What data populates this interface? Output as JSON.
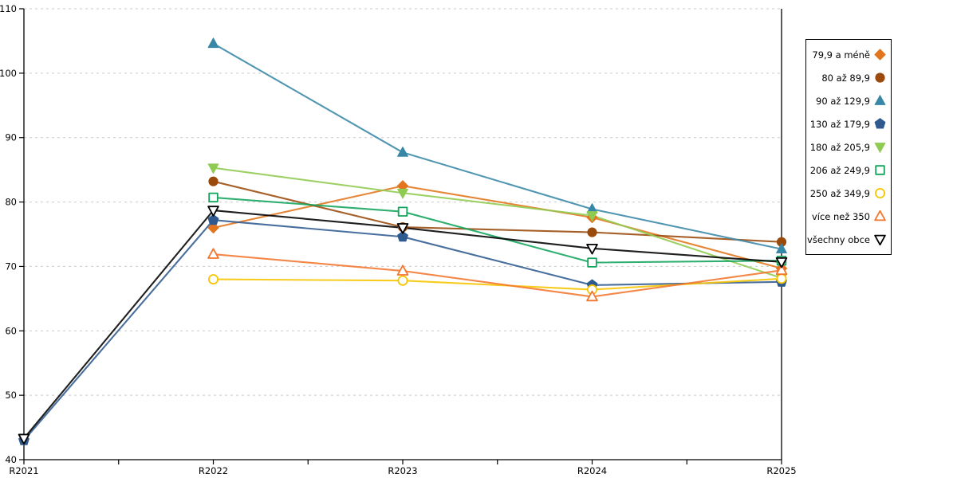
{
  "chart_data": {
    "type": "line",
    "title": "",
    "xlabel": "",
    "ylabel": "",
    "x_labels": [
      "R2021",
      "R2022",
      "R2023",
      "R2024",
      "R2025"
    ],
    "ylim": [
      40,
      110
    ],
    "yticks": [
      40,
      50,
      60,
      70,
      80,
      90,
      100,
      110
    ],
    "grid": "horizontal-dashed",
    "grid_color": "#c9c9c9",
    "axis_color": "#000000",
    "legend_position": "right-outside",
    "series": [
      {
        "name": "79,9 a méně",
        "color": "#E2751D",
        "marker": "diamond",
        "filled": true,
        "values": [
          null,
          76.0,
          82.5,
          77.6,
          69.7
        ]
      },
      {
        "name": "80 až 89,9",
        "color": "#9A4A0C",
        "marker": "circle",
        "filled": true,
        "values": [
          null,
          83.2,
          76.1,
          75.3,
          73.8
        ]
      },
      {
        "name": "90 až 129,9",
        "color": "#3987A6",
        "marker": "triangle-up",
        "filled": true,
        "values": [
          null,
          104.6,
          87.7,
          78.9,
          72.7
        ]
      },
      {
        "name": "130 až 179,9",
        "color": "#2F5A8F",
        "marker": "pentagon",
        "filled": true,
        "values": [
          43.0,
          77.2,
          74.6,
          67.1,
          67.6
        ]
      },
      {
        "name": "180 až 205,9",
        "color": "#8FCB50",
        "marker": "triangle-down",
        "filled": true,
        "values": [
          null,
          85.3,
          81.4,
          77.9,
          68.2
        ]
      },
      {
        "name": "206 až 249,9",
        "color": "#12A45C",
        "marker": "square",
        "filled": false,
        "values": [
          null,
          80.7,
          78.5,
          70.6,
          70.9
        ]
      },
      {
        "name": "250 až 349,9",
        "color": "#F6C500",
        "marker": "circle",
        "filled": false,
        "values": [
          null,
          68.0,
          67.8,
          66.4,
          68.1
        ]
      },
      {
        "name": "více než 350",
        "color": "#F2762E",
        "marker": "triangle-up",
        "filled": false,
        "values": [
          null,
          71.9,
          69.3,
          65.3,
          69.4
        ]
      },
      {
        "name": "všechny obce",
        "color": "#000000",
        "marker": "triangle-down",
        "filled": false,
        "values": [
          43.3,
          78.7,
          76.0,
          72.8,
          70.7
        ]
      }
    ]
  }
}
